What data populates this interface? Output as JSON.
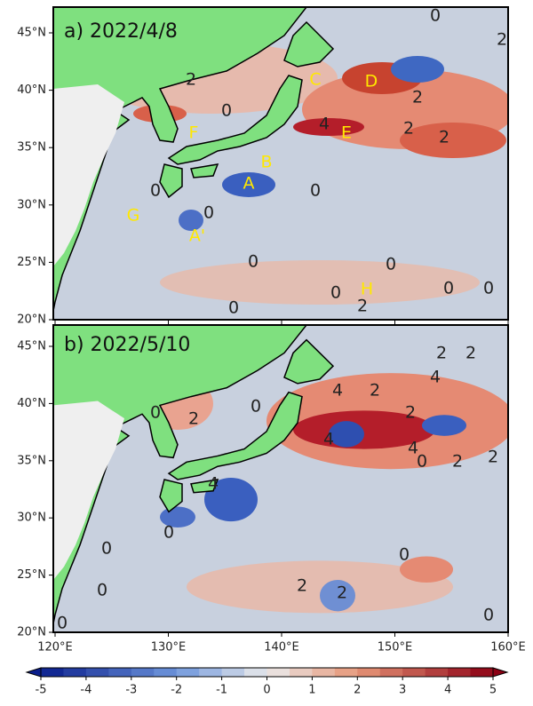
{
  "panels": [
    {
      "title": "a) 2022/4/8",
      "annotations": [
        "A",
        "A'",
        "B",
        "C",
        "D",
        "E",
        "F",
        "G",
        "H"
      ],
      "contour_labels": [
        0,
        2,
        2,
        0,
        2,
        2,
        4,
        0,
        0,
        0,
        0,
        0,
        0,
        0,
        0,
        2,
        0,
        2
      ]
    },
    {
      "title": "b) 2022/5/10",
      "contour_labels": [
        2,
        2,
        4,
        2,
        4,
        2,
        4,
        4,
        2,
        2,
        0,
        0,
        2,
        0,
        0,
        0,
        2,
        2,
        0,
        0,
        0,
        4,
        0
      ]
    }
  ],
  "lat_ticks": [
    {
      "value": 45,
      "label": "45°N"
    },
    {
      "value": 40,
      "label": "40°N"
    },
    {
      "value": 35,
      "label": "35°N"
    },
    {
      "value": 30,
      "label": "30°N"
    },
    {
      "value": 25,
      "label": "25°N"
    },
    {
      "value": 20,
      "label": "20°N"
    }
  ],
  "lon_ticks": [
    {
      "value": 120,
      "label": "120°E"
    },
    {
      "value": 130,
      "label": "130°E"
    },
    {
      "value": 140,
      "label": "140°E"
    },
    {
      "value": 150,
      "label": "150°E"
    },
    {
      "value": 160,
      "label": "160°E"
    }
  ],
  "colorbar": {
    "range": [
      -5,
      5
    ],
    "ticks": [
      -5,
      -4,
      -3,
      -2,
      -1,
      0,
      1,
      2,
      3,
      4,
      5
    ]
  }
}
